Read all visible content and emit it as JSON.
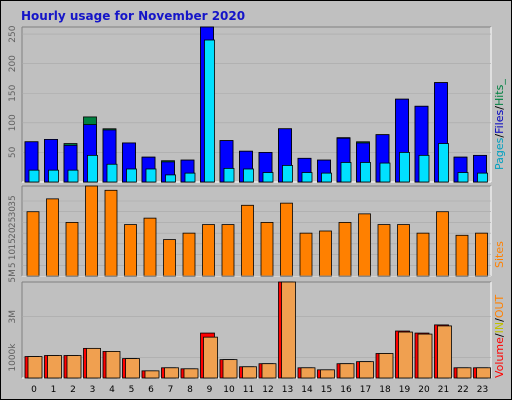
{
  "title": "Hourly usage for November 2020",
  "colors": {
    "hits": "#008040",
    "files": "#0000ff",
    "pages": "#00e0ff",
    "sites": "#ff8000",
    "volume": "#ff0000",
    "in": "#ffff00",
    "out": "#ff8000",
    "plot_bg": "#c0c0c0"
  },
  "legends": {
    "top": {
      "pages": "Pages",
      "sep1": "/",
      "files": "Files",
      "sep2": "/",
      "hits": "Hits_"
    },
    "mid": {
      "sites": "Sites"
    },
    "bottom": {
      "volume": "Volume",
      "sep1": "/",
      "in": "IN",
      "sep2": "/",
      "out": "OUT"
    }
  },
  "chart_data": [
    {
      "type": "bar",
      "categories": [
        "0",
        "1",
        "2",
        "3",
        "4",
        "5",
        "6",
        "7",
        "8",
        "9",
        "10",
        "11",
        "12",
        "13",
        "14",
        "15",
        "16",
        "17",
        "18",
        "19",
        "20",
        "21",
        "22",
        "23"
      ],
      "series": [
        {
          "name": "Hits",
          "values": [
            68,
            72,
            65,
            110,
            90,
            66,
            42,
            36,
            37,
            262,
            70,
            52,
            50,
            90,
            40,
            37,
            75,
            68,
            80,
            140,
            128,
            168,
            42,
            45
          ]
        },
        {
          "name": "Files",
          "values": [
            68,
            72,
            62,
            97,
            88,
            66,
            42,
            34,
            37,
            262,
            70,
            52,
            50,
            90,
            40,
            37,
            74,
            66,
            80,
            140,
            128,
            168,
            42,
            45
          ]
        },
        {
          "name": "Pages",
          "values": [
            20,
            20,
            20,
            45,
            30,
            22,
            22,
            12,
            15,
            240,
            23,
            22,
            16,
            28,
            16,
            15,
            33,
            33,
            32,
            50,
            45,
            65,
            16,
            15
          ]
        }
      ],
      "ylim": [
        0,
        262
      ],
      "yticks": [
        "50",
        "100",
        "150",
        "200",
        "250"
      ]
    },
    {
      "type": "bar",
      "categories": [
        "0",
        "1",
        "2",
        "3",
        "4",
        "5",
        "6",
        "7",
        "8",
        "9",
        "10",
        "11",
        "12",
        "13",
        "14",
        "15",
        "16",
        "17",
        "18",
        "19",
        "20",
        "21",
        "22",
        "23"
      ],
      "series": [
        {
          "name": "Sites",
          "values": [
            30,
            36,
            25,
            42,
            40,
            24,
            27,
            17,
            20,
            24,
            24,
            33,
            25,
            34,
            20,
            21,
            25,
            29,
            24,
            24,
            20,
            30,
            19,
            20
          ]
        }
      ],
      "ylim": [
        0,
        42
      ],
      "yticks": [
        "5",
        "10",
        "15",
        "20",
        "25",
        "30",
        "35"
      ]
    },
    {
      "type": "bar",
      "categories": [
        "0",
        "1",
        "2",
        "3",
        "4",
        "5",
        "6",
        "7",
        "8",
        "9",
        "10",
        "11",
        "12",
        "13",
        "14",
        "15",
        "16",
        "17",
        "18",
        "19",
        "20",
        "21",
        "22",
        "23"
      ],
      "series": [
        {
          "name": "Volume",
          "values": [
            1.05,
            1.1,
            1.1,
            1.45,
            1.3,
            0.95,
            0.35,
            0.5,
            0.45,
            2.2,
            0.9,
            0.55,
            0.7,
            4.7,
            0.5,
            0.4,
            0.7,
            0.8,
            1.2,
            2.3,
            2.2,
            2.6,
            0.5,
            0.5
          ]
        },
        {
          "name": "OUT",
          "values": [
            1.05,
            1.1,
            1.1,
            1.45,
            1.3,
            0.95,
            0.35,
            0.5,
            0.45,
            2.0,
            0.9,
            0.55,
            0.7,
            4.7,
            0.5,
            0.4,
            0.7,
            0.8,
            1.2,
            2.25,
            2.15,
            2.55,
            0.5,
            0.5
          ]
        }
      ],
      "ylim": [
        0,
        4.7
      ],
      "yticks": [
        "1000k",
        "3M",
        "5M"
      ]
    }
  ]
}
